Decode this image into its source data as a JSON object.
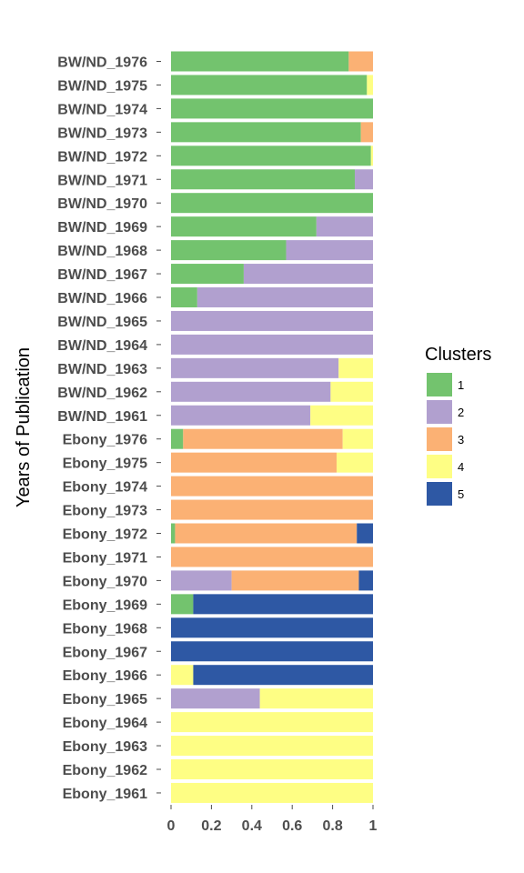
{
  "chart_data": {
    "type": "bar",
    "orientation": "horizontal",
    "stacked": true,
    "ylabel": "Years of Publication",
    "xlabel": "",
    "xlim": [
      0,
      1
    ],
    "xticks": [
      "0",
      "0.2",
      "0.4",
      "0.6",
      "0.8",
      "1"
    ],
    "grid": false,
    "legend": {
      "title": "Clusters",
      "placement": "right",
      "entries": [
        {
          "label": "1",
          "color": "#73C36E"
        },
        {
          "label": "2",
          "color": "#B1A0CF"
        },
        {
          "label": "3",
          "color": "#FBB174"
        },
        {
          "label": "4",
          "color": "#FEFE84"
        },
        {
          "label": "5",
          "color": "#2E58A4"
        }
      ]
    },
    "categories": [
      "BW/ND_1976",
      "BW/ND_1975",
      "BW/ND_1974",
      "BW/ND_1973",
      "BW/ND_1972",
      "BW/ND_1971",
      "BW/ND_1970",
      "BW/ND_1969",
      "BW/ND_1968",
      "BW/ND_1967",
      "BW/ND_1966",
      "BW/ND_1965",
      "BW/ND_1964",
      "BW/ND_1963",
      "BW/ND_1962",
      "BW/ND_1961",
      "Ebony_1976",
      "Ebony_1975",
      "Ebony_1974",
      "Ebony_1973",
      "Ebony_1972",
      "Ebony_1971",
      "Ebony_1970",
      "Ebony_1969",
      "Ebony_1968",
      "Ebony_1967",
      "Ebony_1966",
      "Ebony_1965",
      "Ebony_1964",
      "Ebony_1963",
      "Ebony_1962",
      "Ebony_1961"
    ],
    "series": [
      {
        "name": "1",
        "color": "#73C36E",
        "values": [
          0.88,
          0.97,
          1.0,
          0.94,
          0.99,
          0.91,
          1.0,
          0.72,
          0.57,
          0.36,
          0.13,
          0,
          0,
          0,
          0,
          0,
          0.06,
          0,
          0,
          0,
          0.02,
          0,
          0,
          0.11,
          0,
          0,
          0,
          0,
          0,
          0,
          0,
          0
        ]
      },
      {
        "name": "2",
        "color": "#B1A0CF",
        "values": [
          0,
          0,
          0,
          0,
          0,
          0.09,
          0,
          0.28,
          0.43,
          0.64,
          0.87,
          1.0,
          1.0,
          0.83,
          0.79,
          0.69,
          0,
          0,
          0,
          0,
          0,
          0,
          0.3,
          0,
          0,
          0,
          0,
          0.44,
          0,
          0,
          0,
          0
        ]
      },
      {
        "name": "3",
        "color": "#FBB174",
        "values": [
          0.12,
          0,
          0,
          0.06,
          0,
          0,
          0,
          0,
          0,
          0,
          0,
          0,
          0,
          0,
          0,
          0,
          0.79,
          0.82,
          1.0,
          1.0,
          0.9,
          1.0,
          0.63,
          0,
          0,
          0,
          0,
          0,
          0,
          0,
          0,
          0
        ]
      },
      {
        "name": "4",
        "color": "#FEFE84",
        "values": [
          0,
          0.03,
          0,
          0,
          0.01,
          0,
          0,
          0,
          0,
          0,
          0,
          0,
          0,
          0.17,
          0.21,
          0.31,
          0.15,
          0.18,
          0,
          0,
          0,
          0,
          0,
          0,
          0,
          0,
          0.11,
          0.56,
          1.0,
          1.0,
          1.0,
          1.0
        ]
      },
      {
        "name": "5",
        "color": "#2E58A4",
        "values": [
          0,
          0,
          0,
          0,
          0,
          0,
          0,
          0,
          0,
          0,
          0,
          0,
          0,
          0,
          0,
          0,
          0,
          0,
          0,
          0,
          0.08,
          0,
          0.07,
          0.89,
          1.0,
          1.0,
          0.89,
          0,
          0,
          0,
          0,
          0
        ]
      }
    ]
  }
}
